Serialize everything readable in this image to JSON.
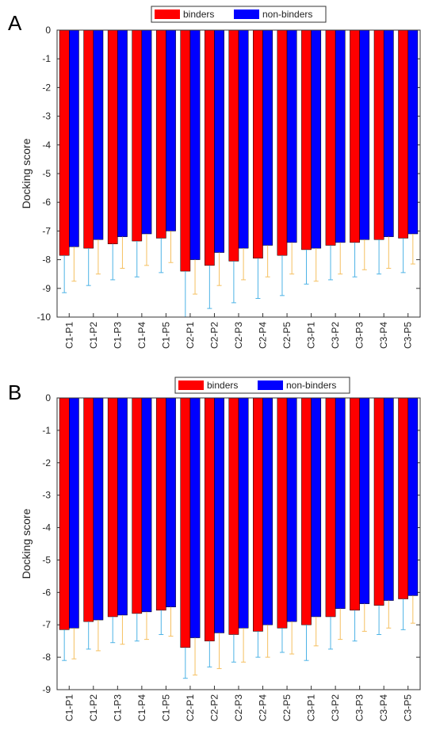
{
  "chart_data": [
    {
      "type": "bar",
      "panel_label": "A",
      "y_label": "Docking score",
      "legend_loc": "upper center",
      "categories": [
        "C1-P1",
        "C1-P2",
        "C1-P3",
        "C1-P4",
        "C1-P5",
        "C2-P1",
        "C2-P2",
        "C2-P3",
        "C2-P4",
        "C2-P5",
        "C3-P1",
        "C3-P2",
        "C3-P3",
        "C3-P4",
        "C3-P5"
      ],
      "series": [
        {
          "name": "binders",
          "color": "#ff0000",
          "error_color": "#4db3e6",
          "values": [
            -7.85,
            -7.6,
            -7.45,
            -7.35,
            -7.25,
            -8.4,
            -8.2,
            -8.05,
            -7.95,
            -7.85,
            -7.65,
            -7.5,
            -7.4,
            -7.3,
            -7.25
          ],
          "errors": [
            1.3,
            1.3,
            1.25,
            1.25,
            1.2,
            1.6,
            1.5,
            1.45,
            1.4,
            1.4,
            1.2,
            1.2,
            1.2,
            1.2,
            1.2
          ]
        },
        {
          "name": "non-binders",
          "color": "#0000ff",
          "error_color": "#f5c060",
          "values": [
            -7.55,
            -7.3,
            -7.2,
            -7.1,
            -7.0,
            -8.0,
            -7.75,
            -7.6,
            -7.5,
            -7.4,
            -7.6,
            -7.4,
            -7.3,
            -7.2,
            -7.1
          ],
          "errors": [
            1.2,
            1.2,
            1.1,
            1.1,
            1.1,
            1.2,
            1.15,
            1.1,
            1.1,
            1.1,
            1.15,
            1.1,
            1.05,
            1.1,
            1.05
          ]
        }
      ],
      "ylim": [
        -10,
        0
      ],
      "yticks": [
        -10,
        -9,
        -8,
        -7,
        -6,
        -5,
        -4,
        -3,
        -2,
        -1,
        0
      ]
    },
    {
      "type": "bar",
      "panel_label": "B",
      "y_label": "Docking score",
      "legend_loc": "upper center",
      "categories": [
        "C1-P1",
        "C1-P2",
        "C1-P3",
        "C1-P4",
        "C1-P5",
        "C2-P1",
        "C2-P2",
        "C2-P3",
        "C2-P4",
        "C2-P5",
        "C3-P1",
        "C3-P2",
        "C3-P3",
        "C3-P4",
        "C3-P5"
      ],
      "series": [
        {
          "name": "binders",
          "color": "#ff0000",
          "error_color": "#4db3e6",
          "values": [
            -7.15,
            -6.9,
            -6.75,
            -6.65,
            -6.55,
            -7.7,
            -7.5,
            -7.3,
            -7.2,
            -7.1,
            -7.0,
            -6.75,
            -6.55,
            -6.4,
            -6.2
          ],
          "errors": [
            0.95,
            0.85,
            0.8,
            0.85,
            0.75,
            0.95,
            0.8,
            0.85,
            0.8,
            0.75,
            1.1,
            1.0,
            0.95,
            0.9,
            0.95
          ]
        },
        {
          "name": "non-binders",
          "color": "#0000ff",
          "error_color": "#f5c060",
          "values": [
            -7.1,
            -6.85,
            -6.7,
            -6.6,
            -6.45,
            -7.4,
            -7.25,
            -7.1,
            -7.0,
            -6.9,
            -6.75,
            -6.5,
            -6.35,
            -6.25,
            -6.1
          ],
          "errors": [
            0.95,
            0.95,
            0.9,
            0.85,
            0.9,
            1.15,
            1.1,
            1.05,
            1.0,
            1.0,
            0.9,
            0.95,
            0.85,
            0.85,
            0.85
          ]
        }
      ],
      "ylim": [
        -9,
        0
      ],
      "yticks": [
        -9,
        -8,
        -7,
        -6,
        -5,
        -4,
        -3,
        -2,
        -1,
        0
      ]
    }
  ]
}
